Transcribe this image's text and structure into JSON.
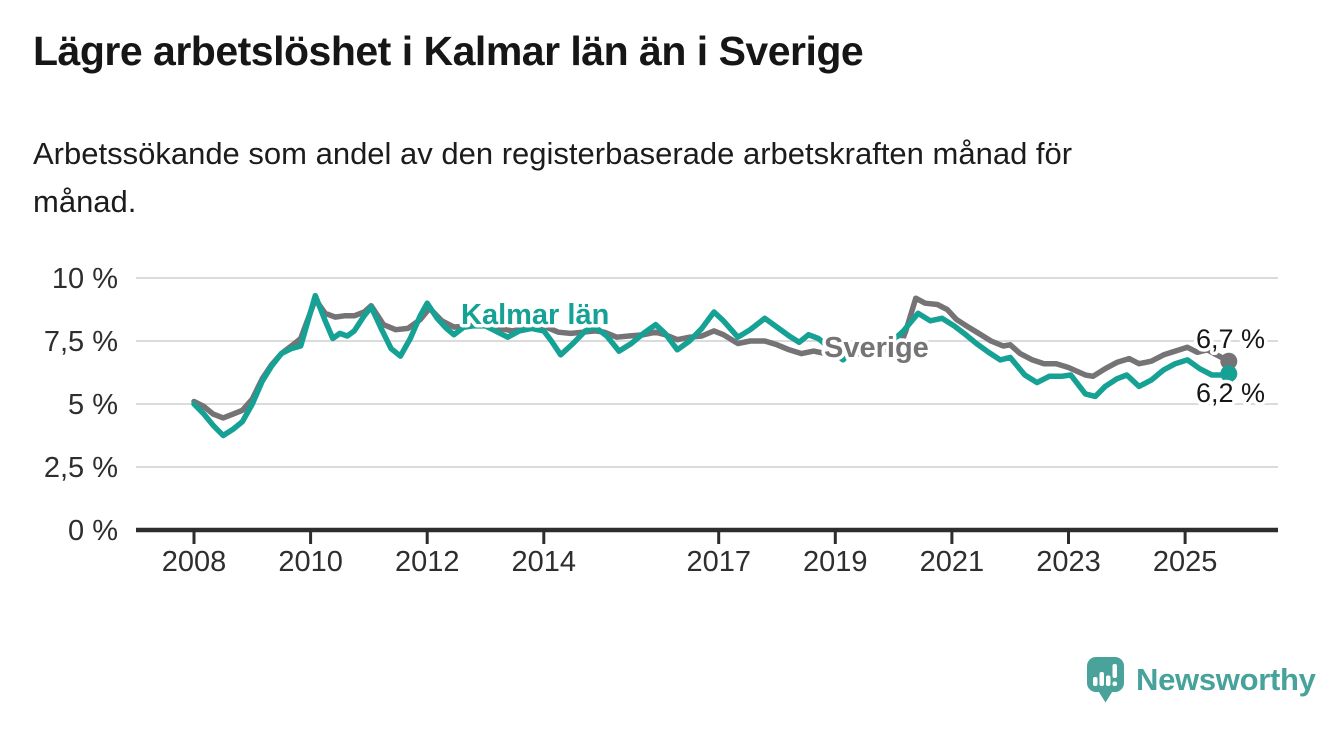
{
  "header": {
    "title": "Lägre arbetslöshet i Kalmar län än i Sverige",
    "subtitle_lines": [
      "Arbetssökande som andel av den registerbaserade arbetskraften månad för",
      "månad."
    ]
  },
  "chart_data": {
    "type": "line",
    "title": "Lägre arbetslöshet i Kalmar län än i Sverige",
    "subtitle": "Arbetssökande som andel av den registerbaserade arbetskraften månad för månad.",
    "unit": "%",
    "grid": "horizontal",
    "legend": "inline-labels",
    "colors": {
      "kalmar": "#16a195",
      "sverige": "#757376",
      "axis": "#2d2d2d",
      "gridline": "#dbdbdb"
    },
    "y_axis": {
      "range": [
        0,
        10
      ],
      "ticks": [
        {
          "value": 10,
          "label": "10 %"
        },
        {
          "value": 7.5,
          "label": "7,5 %"
        },
        {
          "value": 5,
          "label": "5 %"
        },
        {
          "value": 2.5,
          "label": "2,5 %"
        },
        {
          "value": 0,
          "label": "0 %"
        }
      ]
    },
    "x_axis": {
      "range": [
        2007.0,
        2026.6
      ],
      "ticks": [
        {
          "value": 2008,
          "label": "2008"
        },
        {
          "value": 2010,
          "label": "2010"
        },
        {
          "value": 2012,
          "label": "2012"
        },
        {
          "value": 2014,
          "label": "2014"
        },
        {
          "value": 2017,
          "label": "2017"
        },
        {
          "value": 2019,
          "label": "2019"
        },
        {
          "value": 2021,
          "label": "2021"
        },
        {
          "value": 2023,
          "label": "2023"
        },
        {
          "value": 2025,
          "label": "2025"
        }
      ]
    },
    "series": [
      {
        "name": "Sverige",
        "color": "#757376",
        "end_label": "6,7 %",
        "points": [
          [
            2008.0,
            5.1
          ],
          [
            2008.17,
            4.9
          ],
          [
            2008.33,
            4.6
          ],
          [
            2008.5,
            4.45
          ],
          [
            2008.67,
            4.6
          ],
          [
            2008.83,
            4.75
          ],
          [
            2009.0,
            5.2
          ],
          [
            2009.17,
            6.0
          ],
          [
            2009.33,
            6.55
          ],
          [
            2009.5,
            7.0
          ],
          [
            2009.67,
            7.3
          ],
          [
            2009.83,
            7.6
          ],
          [
            2010.08,
            9.15
          ],
          [
            2010.25,
            8.6
          ],
          [
            2010.42,
            8.45
          ],
          [
            2010.58,
            8.5
          ],
          [
            2010.75,
            8.5
          ],
          [
            2010.92,
            8.65
          ],
          [
            2011.04,
            8.9
          ],
          [
            2011.25,
            8.15
          ],
          [
            2011.46,
            7.95
          ],
          [
            2011.67,
            8.0
          ],
          [
            2011.88,
            8.35
          ],
          [
            2012.04,
            8.8
          ],
          [
            2012.25,
            8.3
          ],
          [
            2012.46,
            8.05
          ],
          [
            2012.67,
            8.1
          ],
          [
            2012.88,
            8.15
          ],
          [
            2013.04,
            8.2
          ],
          [
            2013.25,
            8.0
          ],
          [
            2013.46,
            7.9
          ],
          [
            2013.67,
            8.0
          ],
          [
            2013.88,
            8.1
          ],
          [
            2014.04,
            8.05
          ],
          [
            2014.25,
            7.85
          ],
          [
            2014.46,
            7.8
          ],
          [
            2014.67,
            7.85
          ],
          [
            2014.88,
            7.9
          ],
          [
            2015.04,
            7.85
          ],
          [
            2015.25,
            7.65
          ],
          [
            2015.46,
            7.7
          ],
          [
            2015.71,
            7.75
          ],
          [
            2015.92,
            7.85
          ],
          [
            2016.08,
            7.75
          ],
          [
            2016.29,
            7.55
          ],
          [
            2016.5,
            7.65
          ],
          [
            2016.71,
            7.7
          ],
          [
            2016.92,
            7.9
          ],
          [
            2017.08,
            7.75
          ],
          [
            2017.33,
            7.4
          ],
          [
            2017.54,
            7.5
          ],
          [
            2017.79,
            7.5
          ],
          [
            2018.0,
            7.35
          ],
          [
            2018.21,
            7.15
          ],
          [
            2018.42,
            7.0
          ],
          [
            2018.63,
            7.1
          ],
          [
            2018.83,
            7.0
          ],
          [
            2019.04,
            6.85
          ],
          [
            2019.25,
            7.0
          ],
          [
            2019.5,
            7.0
          ],
          [
            2019.75,
            7.1
          ],
          [
            2019.96,
            7.2
          ],
          [
            2020.08,
            7.1
          ],
          [
            2020.21,
            7.9
          ],
          [
            2020.38,
            9.2
          ],
          [
            2020.54,
            9.0
          ],
          [
            2020.75,
            8.95
          ],
          [
            2020.92,
            8.75
          ],
          [
            2021.08,
            8.35
          ],
          [
            2021.25,
            8.1
          ],
          [
            2021.46,
            7.8
          ],
          [
            2021.67,
            7.5
          ],
          [
            2021.88,
            7.3
          ],
          [
            2022.0,
            7.35
          ],
          [
            2022.17,
            7.0
          ],
          [
            2022.38,
            6.75
          ],
          [
            2022.58,
            6.6
          ],
          [
            2022.79,
            6.6
          ],
          [
            2023.0,
            6.45
          ],
          [
            2023.29,
            6.15
          ],
          [
            2023.42,
            6.1
          ],
          [
            2023.63,
            6.4
          ],
          [
            2023.83,
            6.65
          ],
          [
            2024.04,
            6.8
          ],
          [
            2024.21,
            6.6
          ],
          [
            2024.42,
            6.7
          ],
          [
            2024.63,
            6.95
          ],
          [
            2024.83,
            7.1
          ],
          [
            2025.04,
            7.25
          ],
          [
            2025.21,
            7.05
          ],
          [
            2025.38,
            7.15
          ],
          [
            2025.58,
            6.9
          ],
          [
            2025.75,
            6.7
          ]
        ]
      },
      {
        "name": "Kalmar län",
        "color": "#16a195",
        "end_label": "6,2 %",
        "points": [
          [
            2008.0,
            5.0
          ],
          [
            2008.17,
            4.6
          ],
          [
            2008.33,
            4.15
          ],
          [
            2008.5,
            3.75
          ],
          [
            2008.67,
            4.0
          ],
          [
            2008.83,
            4.3
          ],
          [
            2009.0,
            5.0
          ],
          [
            2009.17,
            5.9
          ],
          [
            2009.33,
            6.5
          ],
          [
            2009.5,
            7.0
          ],
          [
            2009.67,
            7.2
          ],
          [
            2009.83,
            7.3
          ],
          [
            2010.08,
            9.3
          ],
          [
            2010.25,
            8.3
          ],
          [
            2010.38,
            7.6
          ],
          [
            2010.5,
            7.8
          ],
          [
            2010.63,
            7.7
          ],
          [
            2010.75,
            7.9
          ],
          [
            2010.92,
            8.5
          ],
          [
            2011.04,
            8.85
          ],
          [
            2011.21,
            8.0
          ],
          [
            2011.38,
            7.2
          ],
          [
            2011.54,
            6.9
          ],
          [
            2011.71,
            7.6
          ],
          [
            2011.88,
            8.5
          ],
          [
            2012.0,
            9.0
          ],
          [
            2012.17,
            8.4
          ],
          [
            2012.33,
            8.0
          ],
          [
            2012.46,
            7.75
          ],
          [
            2012.63,
            8.05
          ],
          [
            2012.79,
            8.1
          ],
          [
            2013.0,
            8.1
          ],
          [
            2013.17,
            7.9
          ],
          [
            2013.38,
            7.65
          ],
          [
            2013.58,
            7.9
          ],
          [
            2013.79,
            8.0
          ],
          [
            2014.0,
            7.9
          ],
          [
            2014.13,
            7.5
          ],
          [
            2014.29,
            6.95
          ],
          [
            2014.5,
            7.4
          ],
          [
            2014.71,
            7.9
          ],
          [
            2014.88,
            8.05
          ],
          [
            2015.08,
            7.7
          ],
          [
            2015.29,
            7.1
          ],
          [
            2015.5,
            7.4
          ],
          [
            2015.71,
            7.8
          ],
          [
            2015.92,
            8.15
          ],
          [
            2016.08,
            7.8
          ],
          [
            2016.29,
            7.15
          ],
          [
            2016.5,
            7.5
          ],
          [
            2016.71,
            8.0
          ],
          [
            2016.92,
            8.65
          ],
          [
            2017.08,
            8.3
          ],
          [
            2017.33,
            7.65
          ],
          [
            2017.54,
            7.95
          ],
          [
            2017.79,
            8.4
          ],
          [
            2018.0,
            8.05
          ],
          [
            2018.21,
            7.7
          ],
          [
            2018.38,
            7.45
          ],
          [
            2018.54,
            7.75
          ],
          [
            2018.71,
            7.6
          ],
          [
            2018.92,
            7.2
          ],
          [
            2019.13,
            6.75
          ],
          [
            2019.33,
            7.2
          ],
          [
            2019.54,
            7.45
          ],
          [
            2019.75,
            7.4
          ],
          [
            2019.96,
            7.45
          ],
          [
            2020.17,
            7.9
          ],
          [
            2020.42,
            8.6
          ],
          [
            2020.63,
            8.3
          ],
          [
            2020.83,
            8.4
          ],
          [
            2021.04,
            8.1
          ],
          [
            2021.21,
            7.8
          ],
          [
            2021.42,
            7.4
          ],
          [
            2021.63,
            7.05
          ],
          [
            2021.83,
            6.75
          ],
          [
            2022.0,
            6.85
          ],
          [
            2022.25,
            6.15
          ],
          [
            2022.46,
            5.85
          ],
          [
            2022.67,
            6.1
          ],
          [
            2022.88,
            6.1
          ],
          [
            2023.04,
            6.15
          ],
          [
            2023.29,
            5.4
          ],
          [
            2023.46,
            5.3
          ],
          [
            2023.63,
            5.7
          ],
          [
            2023.83,
            6.0
          ],
          [
            2024.0,
            6.15
          ],
          [
            2024.21,
            5.7
          ],
          [
            2024.42,
            5.95
          ],
          [
            2024.63,
            6.35
          ],
          [
            2024.83,
            6.6
          ],
          [
            2025.04,
            6.75
          ],
          [
            2025.25,
            6.4
          ],
          [
            2025.46,
            6.15
          ],
          [
            2025.63,
            6.15
          ],
          [
            2025.75,
            6.2
          ]
        ]
      }
    ]
  },
  "footer": {
    "brand": "Newsworthy"
  }
}
